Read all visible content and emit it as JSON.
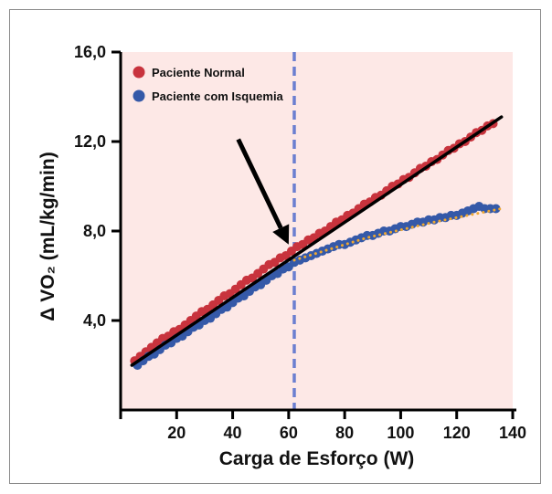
{
  "chart_data": {
    "type": "scatter",
    "title": "",
    "xlabel": "Carga de Esforço (W)",
    "ylabel": "Δ VO₂ (mL/kg/min)",
    "xlim": [
      0,
      140
    ],
    "ylim": [
      0,
      16
    ],
    "x_ticks": [
      20,
      40,
      60,
      80,
      100,
      120,
      140
    ],
    "x_tick_labels": [
      "20",
      "40",
      "60",
      "80",
      "100",
      "120",
      "140"
    ],
    "y_ticks": [
      4,
      8,
      12,
      16
    ],
    "y_tick_labels": [
      "4,0",
      "8,0",
      "12,0",
      "16,0"
    ],
    "grid": false,
    "legend_position": "top-left",
    "background_color": "#fde8e6",
    "series": [
      {
        "name": "Paciente Normal",
        "color": "#c8333d",
        "points": [
          [
            5,
            2.2
          ],
          [
            7,
            2.4
          ],
          [
            9,
            2.6
          ],
          [
            11,
            2.8
          ],
          [
            13,
            3.0
          ],
          [
            15,
            3.2
          ],
          [
            17,
            3.3
          ],
          [
            19,
            3.5
          ],
          [
            21,
            3.6
          ],
          [
            23,
            3.8
          ],
          [
            25,
            4.0
          ],
          [
            27,
            4.2
          ],
          [
            29,
            4.4
          ],
          [
            31,
            4.5
          ],
          [
            33,
            4.7
          ],
          [
            35,
            4.9
          ],
          [
            37,
            5.1
          ],
          [
            39,
            5.2
          ],
          [
            41,
            5.4
          ],
          [
            43,
            5.6
          ],
          [
            45,
            5.8
          ],
          [
            47,
            5.9
          ],
          [
            49,
            6.1
          ],
          [
            51,
            6.3
          ],
          [
            53,
            6.5
          ],
          [
            55,
            6.6
          ],
          [
            57,
            6.8
          ],
          [
            59,
            6.9
          ],
          [
            61,
            7.1
          ],
          [
            63,
            7.3
          ],
          [
            65,
            7.4
          ],
          [
            67,
            7.6
          ],
          [
            69,
            7.7
          ],
          [
            71,
            7.9
          ],
          [
            73,
            8.0
          ],
          [
            75,
            8.2
          ],
          [
            77,
            8.4
          ],
          [
            79,
            8.5
          ],
          [
            81,
            8.7
          ],
          [
            83,
            8.8
          ],
          [
            85,
            9.0
          ],
          [
            87,
            9.2
          ],
          [
            89,
            9.3
          ],
          [
            91,
            9.5
          ],
          [
            93,
            9.6
          ],
          [
            95,
            9.8
          ],
          [
            97,
            10.0
          ],
          [
            99,
            10.1
          ],
          [
            101,
            10.3
          ],
          [
            103,
            10.4
          ],
          [
            105,
            10.6
          ],
          [
            107,
            10.8
          ],
          [
            109,
            10.9
          ],
          [
            111,
            11.1
          ],
          [
            113,
            11.2
          ],
          [
            115,
            11.4
          ],
          [
            117,
            11.6
          ],
          [
            119,
            11.7
          ],
          [
            121,
            11.9
          ],
          [
            123,
            12.0
          ],
          [
            125,
            12.2
          ],
          [
            127,
            12.4
          ],
          [
            129,
            12.5
          ],
          [
            131,
            12.7
          ],
          [
            133,
            12.8
          ]
        ]
      },
      {
        "name": "Paciente com Isquemia",
        "color": "#3559a8",
        "points": [
          [
            6,
            2.0
          ],
          [
            8,
            2.2
          ],
          [
            10,
            2.4
          ],
          [
            12,
            2.5
          ],
          [
            14,
            2.7
          ],
          [
            16,
            2.9
          ],
          [
            18,
            3.0
          ],
          [
            20,
            3.2
          ],
          [
            22,
            3.3
          ],
          [
            24,
            3.5
          ],
          [
            26,
            3.7
          ],
          [
            28,
            3.8
          ],
          [
            30,
            4.0
          ],
          [
            32,
            4.1
          ],
          [
            34,
            4.3
          ],
          [
            36,
            4.5
          ],
          [
            38,
            4.6
          ],
          [
            40,
            4.8
          ],
          [
            42,
            5.0
          ],
          [
            44,
            5.1
          ],
          [
            46,
            5.3
          ],
          [
            48,
            5.5
          ],
          [
            50,
            5.6
          ],
          [
            52,
            5.8
          ],
          [
            54,
            6.0
          ],
          [
            56,
            6.1
          ],
          [
            58,
            6.3
          ],
          [
            60,
            6.4
          ],
          [
            62,
            6.6
          ],
          [
            64,
            6.7
          ],
          [
            66,
            6.8
          ],
          [
            68,
            6.9
          ],
          [
            70,
            7.0
          ],
          [
            72,
            7.1
          ],
          [
            74,
            7.2
          ],
          [
            76,
            7.3
          ],
          [
            78,
            7.4
          ],
          [
            80,
            7.4
          ],
          [
            82,
            7.5
          ],
          [
            84,
            7.6
          ],
          [
            86,
            7.7
          ],
          [
            88,
            7.8
          ],
          [
            90,
            7.8
          ],
          [
            92,
            7.9
          ],
          [
            94,
            8.0
          ],
          [
            96,
            8.0
          ],
          [
            98,
            8.1
          ],
          [
            100,
            8.2
          ],
          [
            102,
            8.2
          ],
          [
            104,
            8.3
          ],
          [
            106,
            8.4
          ],
          [
            108,
            8.4
          ],
          [
            110,
            8.5
          ],
          [
            112,
            8.5
          ],
          [
            114,
            8.6
          ],
          [
            116,
            8.6
          ],
          [
            118,
            8.7
          ],
          [
            120,
            8.7
          ],
          [
            122,
            8.8
          ],
          [
            124,
            8.9
          ],
          [
            126,
            9.0
          ],
          [
            128,
            9.1
          ],
          [
            130,
            9.0
          ],
          [
            132,
            9.0
          ],
          [
            134,
            9.0
          ]
        ]
      }
    ],
    "fit_lines": [
      {
        "color": "#000000",
        "style": "solid",
        "points": [
          [
            4,
            2.0
          ],
          [
            136,
            13.1
          ]
        ]
      },
      {
        "color": "#f0a830",
        "style": "dotted",
        "points": [
          [
            62,
            6.7
          ],
          [
            88,
            7.7
          ],
          [
            112,
            8.4
          ],
          [
            136,
            9.0
          ]
        ]
      }
    ],
    "reference_line": {
      "x": 62,
      "color": "#6b7fd0",
      "style": "dashed"
    },
    "arrow_annotation": {
      "from": [
        42,
        12.1
      ],
      "to": [
        60,
        7.4
      ],
      "color": "#000000"
    }
  }
}
